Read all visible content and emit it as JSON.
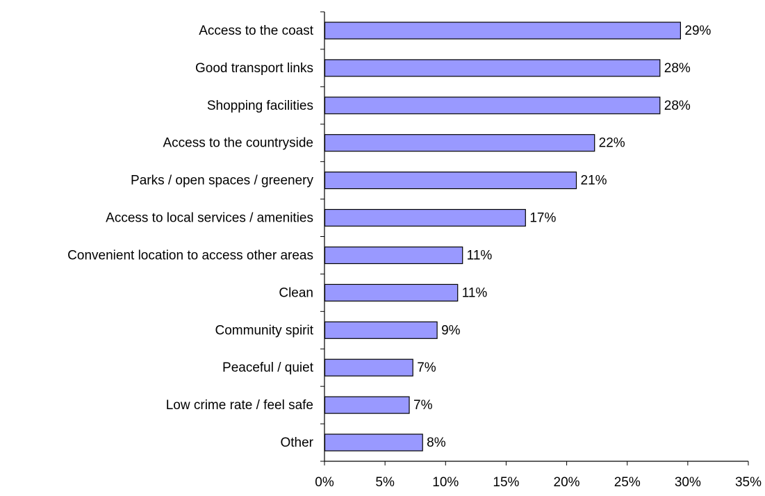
{
  "chart_data": {
    "type": "bar",
    "orientation": "horizontal",
    "title": "",
    "xlabel": "",
    "ylabel": "",
    "categories": [
      "Access to the coast",
      "Good transport links",
      "Shopping facilities",
      "Access to the countryside",
      "Parks / open spaces / greenery",
      "Access to local services / amenities ",
      "Convenient location to access other areas",
      "Clean",
      "Community spirit",
      "Peaceful / quiet",
      "Low crime rate / feel safe",
      "Other"
    ],
    "values": [
      29.4,
      27.7,
      27.7,
      22.3,
      20.8,
      16.6,
      11.4,
      11.0,
      9.3,
      7.3,
      7.0,
      8.1
    ],
    "data_labels": [
      "29%",
      "28%",
      "28%",
      "22%",
      "21%",
      "17%",
      "11%",
      "11%",
      "9%",
      "7%",
      "7%",
      "8%"
    ],
    "xlim": [
      0,
      35
    ],
    "x_ticks": [
      0,
      5,
      10,
      15,
      20,
      25,
      30,
      35
    ],
    "x_tick_labels": [
      "0%",
      "5%",
      "10%",
      "15%",
      "20%",
      "25%",
      "30%",
      "35%"
    ],
    "grid": false,
    "legend": "none",
    "colors": {
      "bar_fill": "#9999FF",
      "bar_stroke": "#000000",
      "axis": "#000000",
      "text": "#000000"
    }
  }
}
